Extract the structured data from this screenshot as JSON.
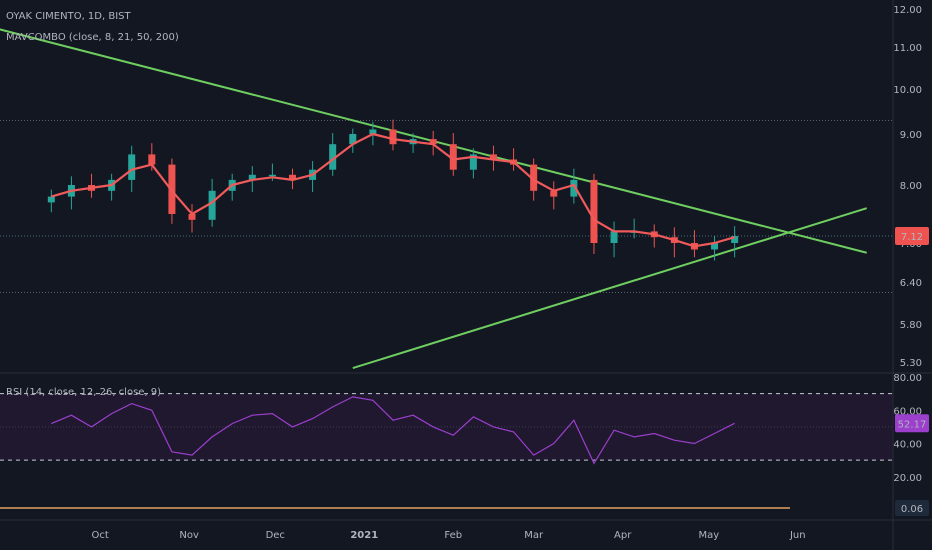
{
  "legend": {
    "symbol": "OYAK CIMENTO, 1D, BIST",
    "indicator": "MAVCOMBO (close, 8, 21, 50, 200)",
    "rsi": "RSI (14, close, 12, 26, close, 9)"
  },
  "chart_data": [
    {
      "type": "candlestick",
      "title": "OYAK CIMENTO, 1D, BIST",
      "y_ticks": [
        "12.00",
        "11.00",
        "10.00",
        "9.00",
        "8.00",
        "7.00",
        "6.40",
        "5.80",
        "5.30"
      ],
      "x_ticks": [
        "Oct",
        "Nov",
        "Dec",
        "2021",
        "Feb",
        "Mar",
        "Apr",
        "May",
        "Jun"
      ],
      "last_price": "7.12",
      "series": [
        {
          "name": "close",
          "x": [
            "2020-09-14",
            "2020-09-21",
            "2020-09-28",
            "2020-10-05",
            "2020-10-12",
            "2020-10-19",
            "2020-10-26",
            "2020-11-02",
            "2020-11-09",
            "2020-11-16",
            "2020-11-23",
            "2020-11-30",
            "2020-12-07",
            "2020-12-14",
            "2020-12-21",
            "2020-12-28",
            "2021-01-04",
            "2021-01-11",
            "2021-01-18",
            "2021-01-25",
            "2021-02-01",
            "2021-02-08",
            "2021-02-15",
            "2021-02-22",
            "2021-03-01",
            "2021-03-08",
            "2021-03-15",
            "2021-03-22",
            "2021-03-29",
            "2021-04-05",
            "2021-04-12",
            "2021-04-19",
            "2021-04-26",
            "2021-05-03",
            "2021-05-10"
          ],
          "values": [
            7.8,
            8.0,
            7.9,
            8.1,
            8.6,
            8.4,
            7.5,
            7.4,
            7.9,
            8.1,
            8.2,
            8.2,
            8.1,
            8.3,
            8.8,
            9.0,
            9.1,
            8.8,
            8.9,
            8.8,
            8.3,
            8.6,
            8.5,
            8.4,
            7.9,
            7.8,
            8.1,
            7.0,
            7.2,
            7.2,
            7.1,
            7.0,
            6.9,
            7.0,
            7.12
          ]
        }
      ],
      "moving_average": {
        "values": [
          7.8,
          7.9,
          7.95,
          8.0,
          8.3,
          8.4,
          7.9,
          7.5,
          7.7,
          8.0,
          8.1,
          8.15,
          8.1,
          8.2,
          8.5,
          8.8,
          9.0,
          8.9,
          8.85,
          8.8,
          8.5,
          8.55,
          8.5,
          8.45,
          8.1,
          7.9,
          8.0,
          7.4,
          7.2,
          7.2,
          7.15,
          7.05,
          6.95,
          7.0,
          7.1
        ]
      },
      "trendlines": [
        {
          "from": [
            "2020-08-20",
            11.6
          ],
          "to": [
            "2021-06-25",
            6.85
          ]
        },
        {
          "from": [
            "2020-12-28",
            5.22
          ],
          "to": [
            "2021-06-25",
            7.6
          ]
        }
      ],
      "horizontal_levels": [
        9.3,
        7.12,
        6.25
      ]
    },
    {
      "type": "line",
      "title": "RSI (14, close, 12, 26, close, 9)",
      "y_ticks": [
        "80.00",
        "60.00",
        "40.00",
        "20.00",
        "0.06"
      ],
      "bands": [
        70,
        30
      ],
      "last_value": "52.17",
      "macd_last": "0.06",
      "series": [
        {
          "name": "RSI",
          "values": [
            52,
            57,
            50,
            58,
            64,
            60,
            35,
            33,
            44,
            52,
            57,
            58,
            50,
            55,
            62,
            68,
            66,
            54,
            57,
            50,
            45,
            56,
            50,
            47,
            33,
            40,
            54,
            28,
            48,
            44,
            46,
            42,
            40,
            46,
            52.17
          ]
        }
      ]
    }
  ],
  "colors": {
    "background": "#131722",
    "up": "#26a69a",
    "down": "#ef5350",
    "ma": "#f05a5a",
    "trend": "#6fce60",
    "rsi": "#9b3fcc",
    "rsi_fill": "#2a1a3a",
    "last_price_bg": "#ef5350",
    "macd_badge": "#1e2a3a"
  }
}
